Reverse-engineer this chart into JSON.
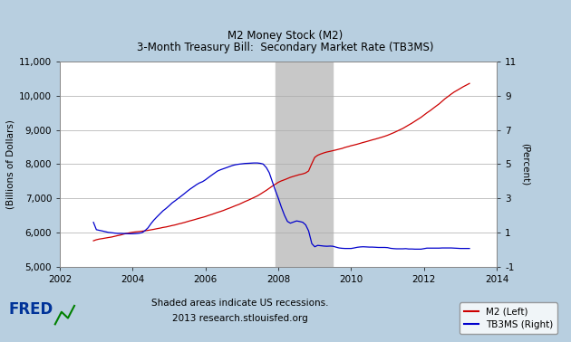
{
  "title_line1": "M2 Money Stock (M2)",
  "title_line2": "3-Month Treasury Bill:  Secondary Market Rate (TB3MS)",
  "background_color": "#b8cfe0",
  "plot_bg_color": "#ffffff",
  "recession_color": "#c8c8c8",
  "recession_start": 2007.92,
  "recession_end": 2009.5,
  "xlim": [
    2002,
    2014
  ],
  "ylim_left": [
    5000,
    11000
  ],
  "ylim_right": [
    -1,
    11
  ],
  "yticks_left": [
    5000,
    6000,
    7000,
    8000,
    9000,
    10000,
    11000
  ],
  "yticks_right": [
    -1,
    1,
    3,
    5,
    7,
    9,
    11
  ],
  "ylabel_left": "(Billions of Dollars)",
  "ylabel_right": "(Percent)",
  "xticks": [
    2002,
    2004,
    2006,
    2008,
    2010,
    2012,
    2014
  ],
  "footer_line1": "Shaded areas indicate US recessions.",
  "footer_line2": "2013 research.stlouisfed.org",
  "fred_logo_color": "#003399",
  "legend_labels": [
    "M2 (Left)",
    "TB3MS (Right)"
  ],
  "legend_colors": [
    "#cc0000",
    "#0000cc"
  ],
  "m2_color": "#cc0000",
  "tb3ms_color": "#0000cc",
  "m2_data": [
    [
      2002.92,
      5760
    ],
    [
      2003.0,
      5790
    ],
    [
      2003.08,
      5810
    ],
    [
      2003.17,
      5825
    ],
    [
      2003.25,
      5840
    ],
    [
      2003.33,
      5855
    ],
    [
      2003.42,
      5870
    ],
    [
      2003.5,
      5890
    ],
    [
      2003.58,
      5910
    ],
    [
      2003.67,
      5930
    ],
    [
      2003.75,
      5955
    ],
    [
      2003.83,
      5975
    ],
    [
      2003.92,
      5995
    ],
    [
      2004.0,
      6010
    ],
    [
      2004.08,
      6020
    ],
    [
      2004.17,
      6030
    ],
    [
      2004.25,
      6040
    ],
    [
      2004.33,
      6050
    ],
    [
      2004.42,
      6065
    ],
    [
      2004.5,
      6080
    ],
    [
      2004.58,
      6095
    ],
    [
      2004.67,
      6115
    ],
    [
      2004.75,
      6130
    ],
    [
      2004.83,
      6150
    ],
    [
      2004.92,
      6165
    ],
    [
      2005.0,
      6185
    ],
    [
      2005.08,
      6205
    ],
    [
      2005.17,
      6225
    ],
    [
      2005.25,
      6250
    ],
    [
      2005.33,
      6270
    ],
    [
      2005.42,
      6295
    ],
    [
      2005.5,
      6320
    ],
    [
      2005.58,
      6345
    ],
    [
      2005.67,
      6370
    ],
    [
      2005.75,
      6395
    ],
    [
      2005.83,
      6420
    ],
    [
      2005.92,
      6445
    ],
    [
      2006.0,
      6470
    ],
    [
      2006.08,
      6500
    ],
    [
      2006.17,
      6530
    ],
    [
      2006.25,
      6560
    ],
    [
      2006.33,
      6590
    ],
    [
      2006.42,
      6620
    ],
    [
      2006.5,
      6650
    ],
    [
      2006.58,
      6685
    ],
    [
      2006.67,
      6720
    ],
    [
      2006.75,
      6755
    ],
    [
      2006.83,
      6790
    ],
    [
      2006.92,
      6825
    ],
    [
      2007.0,
      6865
    ],
    [
      2007.08,
      6905
    ],
    [
      2007.17,
      6945
    ],
    [
      2007.25,
      6985
    ],
    [
      2007.33,
      7025
    ],
    [
      2007.42,
      7070
    ],
    [
      2007.5,
      7120
    ],
    [
      2007.58,
      7175
    ],
    [
      2007.67,
      7235
    ],
    [
      2007.75,
      7295
    ],
    [
      2007.83,
      7355
    ],
    [
      2007.92,
      7415
    ],
    [
      2008.0,
      7470
    ],
    [
      2008.08,
      7510
    ],
    [
      2008.17,
      7545
    ],
    [
      2008.25,
      7580
    ],
    [
      2008.33,
      7615
    ],
    [
      2008.42,
      7645
    ],
    [
      2008.5,
      7670
    ],
    [
      2008.58,
      7695
    ],
    [
      2008.67,
      7715
    ],
    [
      2008.75,
      7745
    ],
    [
      2008.83,
      7800
    ],
    [
      2008.92,
      8020
    ],
    [
      2009.0,
      8200
    ],
    [
      2009.08,
      8260
    ],
    [
      2009.17,
      8300
    ],
    [
      2009.25,
      8330
    ],
    [
      2009.33,
      8355
    ],
    [
      2009.42,
      8375
    ],
    [
      2009.5,
      8395
    ],
    [
      2009.58,
      8415
    ],
    [
      2009.67,
      8440
    ],
    [
      2009.75,
      8460
    ],
    [
      2009.83,
      8490
    ],
    [
      2009.92,
      8515
    ],
    [
      2010.0,
      8540
    ],
    [
      2010.08,
      8560
    ],
    [
      2010.17,
      8585
    ],
    [
      2010.25,
      8610
    ],
    [
      2010.33,
      8635
    ],
    [
      2010.42,
      8660
    ],
    [
      2010.5,
      8685
    ],
    [
      2010.58,
      8710
    ],
    [
      2010.67,
      8735
    ],
    [
      2010.75,
      8760
    ],
    [
      2010.83,
      8785
    ],
    [
      2010.92,
      8815
    ],
    [
      2011.0,
      8845
    ],
    [
      2011.08,
      8880
    ],
    [
      2011.17,
      8920
    ],
    [
      2011.25,
      8960
    ],
    [
      2011.33,
      9000
    ],
    [
      2011.42,
      9045
    ],
    [
      2011.5,
      9095
    ],
    [
      2011.58,
      9145
    ],
    [
      2011.67,
      9200
    ],
    [
      2011.75,
      9255
    ],
    [
      2011.83,
      9310
    ],
    [
      2011.92,
      9370
    ],
    [
      2012.0,
      9435
    ],
    [
      2012.08,
      9500
    ],
    [
      2012.17,
      9565
    ],
    [
      2012.25,
      9630
    ],
    [
      2012.33,
      9695
    ],
    [
      2012.42,
      9765
    ],
    [
      2012.5,
      9840
    ],
    [
      2012.58,
      9915
    ],
    [
      2012.67,
      9985
    ],
    [
      2012.75,
      10050
    ],
    [
      2012.83,
      10110
    ],
    [
      2012.92,
      10165
    ],
    [
      2013.0,
      10215
    ],
    [
      2013.08,
      10265
    ],
    [
      2013.17,
      10315
    ],
    [
      2013.25,
      10360
    ]
  ],
  "tb3ms_data": [
    [
      2002.92,
      1.6
    ],
    [
      2003.0,
      1.17
    ],
    [
      2003.08,
      1.13
    ],
    [
      2003.17,
      1.09
    ],
    [
      2003.25,
      1.05
    ],
    [
      2003.33,
      1.01
    ],
    [
      2003.42,
      0.99
    ],
    [
      2003.5,
      0.97
    ],
    [
      2003.58,
      0.95
    ],
    [
      2003.67,
      0.95
    ],
    [
      2003.75,
      0.94
    ],
    [
      2003.83,
      0.94
    ],
    [
      2003.92,
      0.93
    ],
    [
      2004.0,
      0.93
    ],
    [
      2004.08,
      0.94
    ],
    [
      2004.17,
      0.96
    ],
    [
      2004.25,
      0.99
    ],
    [
      2004.33,
      1.1
    ],
    [
      2004.42,
      1.28
    ],
    [
      2004.5,
      1.52
    ],
    [
      2004.58,
      1.73
    ],
    [
      2004.67,
      1.93
    ],
    [
      2004.75,
      2.1
    ],
    [
      2004.83,
      2.27
    ],
    [
      2004.92,
      2.42
    ],
    [
      2005.0,
      2.57
    ],
    [
      2005.08,
      2.73
    ],
    [
      2005.17,
      2.87
    ],
    [
      2005.25,
      3.0
    ],
    [
      2005.33,
      3.13
    ],
    [
      2005.42,
      3.28
    ],
    [
      2005.5,
      3.42
    ],
    [
      2005.58,
      3.55
    ],
    [
      2005.67,
      3.68
    ],
    [
      2005.75,
      3.8
    ],
    [
      2005.83,
      3.9
    ],
    [
      2005.92,
      3.98
    ],
    [
      2006.0,
      4.09
    ],
    [
      2006.08,
      4.22
    ],
    [
      2006.17,
      4.36
    ],
    [
      2006.25,
      4.48
    ],
    [
      2006.33,
      4.6
    ],
    [
      2006.42,
      4.68
    ],
    [
      2006.5,
      4.74
    ],
    [
      2006.58,
      4.8
    ],
    [
      2006.67,
      4.87
    ],
    [
      2006.75,
      4.93
    ],
    [
      2006.83,
      4.97
    ],
    [
      2006.92,
      5.0
    ],
    [
      2007.0,
      5.02
    ],
    [
      2007.08,
      5.04
    ],
    [
      2007.17,
      5.05
    ],
    [
      2007.25,
      5.06
    ],
    [
      2007.33,
      5.07
    ],
    [
      2007.42,
      5.07
    ],
    [
      2007.5,
      5.05
    ],
    [
      2007.58,
      5.01
    ],
    [
      2007.67,
      4.8
    ],
    [
      2007.75,
      4.5
    ],
    [
      2007.83,
      4.0
    ],
    [
      2007.92,
      3.45
    ],
    [
      2008.0,
      3.0
    ],
    [
      2008.08,
      2.5
    ],
    [
      2008.17,
      2.0
    ],
    [
      2008.25,
      1.65
    ],
    [
      2008.33,
      1.55
    ],
    [
      2008.42,
      1.62
    ],
    [
      2008.5,
      1.68
    ],
    [
      2008.58,
      1.65
    ],
    [
      2008.67,
      1.6
    ],
    [
      2008.75,
      1.45
    ],
    [
      2008.83,
      1.1
    ],
    [
      2008.92,
      0.35
    ],
    [
      2009.0,
      0.17
    ],
    [
      2009.08,
      0.25
    ],
    [
      2009.17,
      0.23
    ],
    [
      2009.25,
      0.21
    ],
    [
      2009.33,
      0.2
    ],
    [
      2009.42,
      0.21
    ],
    [
      2009.5,
      0.2
    ],
    [
      2009.58,
      0.15
    ],
    [
      2009.67,
      0.1
    ],
    [
      2009.75,
      0.08
    ],
    [
      2009.83,
      0.07
    ],
    [
      2009.92,
      0.07
    ],
    [
      2010.0,
      0.07
    ],
    [
      2010.08,
      0.1
    ],
    [
      2010.17,
      0.14
    ],
    [
      2010.25,
      0.16
    ],
    [
      2010.33,
      0.17
    ],
    [
      2010.42,
      0.16
    ],
    [
      2010.5,
      0.15
    ],
    [
      2010.58,
      0.15
    ],
    [
      2010.67,
      0.14
    ],
    [
      2010.75,
      0.13
    ],
    [
      2010.83,
      0.13
    ],
    [
      2010.92,
      0.13
    ],
    [
      2011.0,
      0.12
    ],
    [
      2011.08,
      0.08
    ],
    [
      2011.17,
      0.06
    ],
    [
      2011.25,
      0.05
    ],
    [
      2011.33,
      0.05
    ],
    [
      2011.42,
      0.05
    ],
    [
      2011.5,
      0.06
    ],
    [
      2011.58,
      0.04
    ],
    [
      2011.67,
      0.04
    ],
    [
      2011.75,
      0.03
    ],
    [
      2011.83,
      0.03
    ],
    [
      2011.92,
      0.03
    ],
    [
      2012.0,
      0.06
    ],
    [
      2012.08,
      0.09
    ],
    [
      2012.17,
      0.09
    ],
    [
      2012.25,
      0.09
    ],
    [
      2012.33,
      0.09
    ],
    [
      2012.42,
      0.09
    ],
    [
      2012.5,
      0.1
    ],
    [
      2012.58,
      0.1
    ],
    [
      2012.67,
      0.1
    ],
    [
      2012.75,
      0.1
    ],
    [
      2012.83,
      0.09
    ],
    [
      2012.92,
      0.08
    ],
    [
      2013.0,
      0.07
    ],
    [
      2013.08,
      0.07
    ],
    [
      2013.17,
      0.07
    ],
    [
      2013.25,
      0.07
    ]
  ]
}
